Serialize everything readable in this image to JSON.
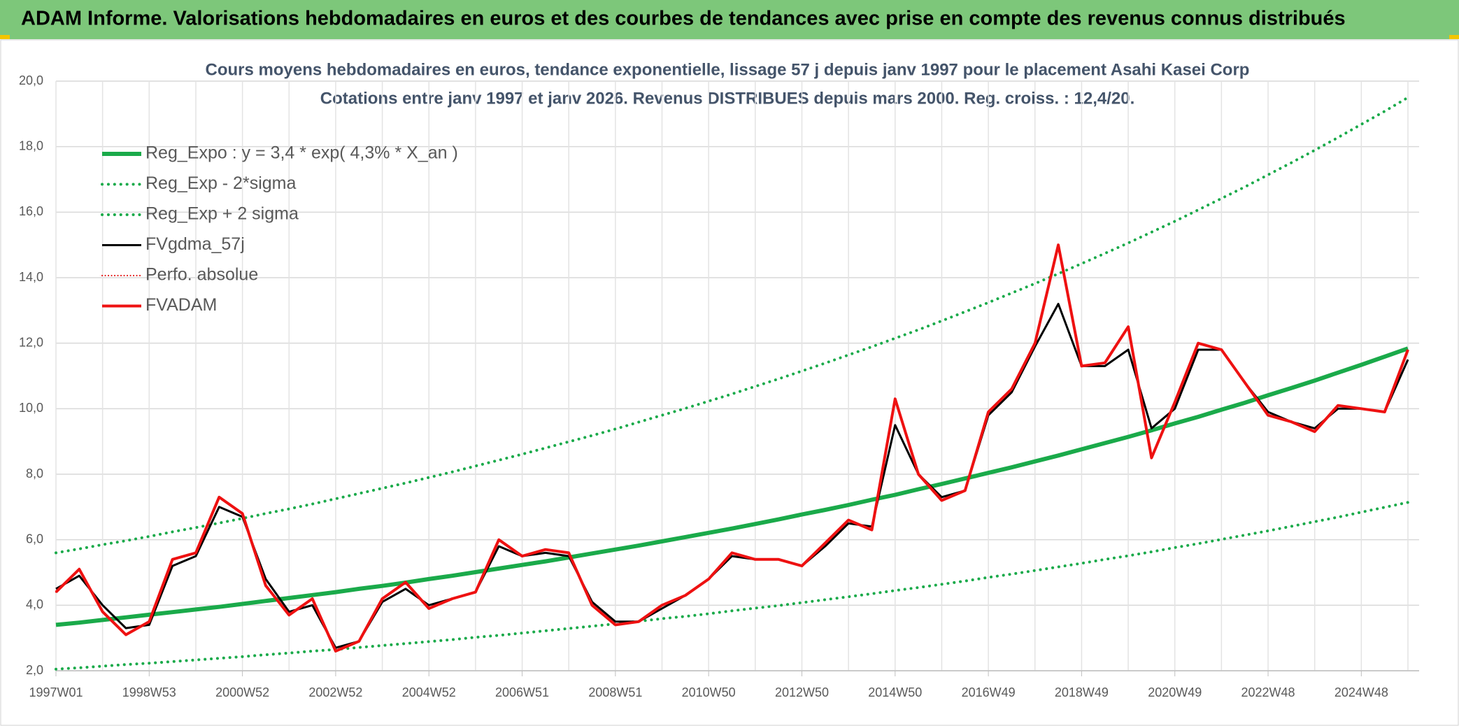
{
  "header": {
    "title": "ADAM Informe. Valorisations hebdomadaires en euros et des courbes de tendances avec prise en compte des revenus connus distribués"
  },
  "chart_data": {
    "type": "line",
    "title": "Cours moyens hebdomadaires en euros, tendance exponentielle, lissage 57 j depuis janv 1997 pour le placement Asahi Kasei Corp",
    "subtitle": "Cotations entre janv 1997 et janv 2026. Revenus DISTRIBUES depuis mars 2000. Reg. croiss. : 12,4/20.",
    "categories": [
      "1997W01",
      null,
      null,
      null,
      "1998W53",
      null,
      null,
      null,
      "2000W52",
      null,
      null,
      null,
      "2002W52",
      null,
      null,
      null,
      "2004W52",
      null,
      null,
      null,
      "2006W51",
      null,
      null,
      null,
      "2008W51",
      null,
      null,
      null,
      "2010W50",
      null,
      null,
      null,
      "2012W50",
      null,
      null,
      null,
      "2014W50",
      null,
      null,
      null,
      "2016W49",
      null,
      null,
      null,
      "2018W49",
      null,
      null,
      null,
      "2020W49",
      null,
      null,
      null,
      "2022W48",
      null,
      null,
      null,
      "2024W48",
      null,
      null
    ],
    "ylim": [
      2,
      20
    ],
    "yticks": [
      {
        "value": 2,
        "label": "2,0"
      },
      {
        "value": 4,
        "label": "4,0"
      },
      {
        "value": 6,
        "label": "6,0"
      },
      {
        "value": 8,
        "label": "8,0"
      },
      {
        "value": 10,
        "label": "10,0"
      },
      {
        "value": 12,
        "label": "12,0"
      },
      {
        "value": 14,
        "label": "14,0"
      },
      {
        "value": 16,
        "label": "16,0"
      },
      {
        "value": 18,
        "label": "18,0"
      },
      {
        "value": 20,
        "label": "20,0"
      }
    ],
    "grid": true,
    "legend": "upper left",
    "series": [
      {
        "name": "Reg_Expo : y = 3,4 * exp( 4,3% *  X_an )",
        "color": "#1aaa4a",
        "width": 6,
        "dotted": false,
        "values": [
          3.4,
          3.47,
          3.55,
          3.63,
          3.71,
          3.79,
          3.87,
          3.95,
          4.04,
          4.13,
          4.22,
          4.31,
          4.4,
          4.5,
          4.59,
          4.69,
          4.8,
          4.9,
          5.01,
          5.12,
          5.23,
          5.34,
          5.46,
          5.58,
          5.7,
          5.82,
          5.95,
          6.08,
          6.21,
          6.34,
          6.48,
          6.62,
          6.77,
          6.91,
          7.06,
          7.22,
          7.37,
          7.54,
          7.7,
          7.87,
          8.04,
          8.21,
          8.39,
          8.57,
          8.76,
          8.95,
          9.14,
          9.34,
          9.55,
          9.75,
          9.97,
          10.18,
          10.41,
          10.63,
          10.86,
          11.1,
          11.34,
          11.59,
          11.84
        ]
      },
      {
        "name": "Reg_Exp - 2*sigma",
        "color": "#1aaa4a",
        "width": 4,
        "dotted": true,
        "values": [
          2.05,
          2.09,
          2.14,
          2.19,
          2.23,
          2.28,
          2.33,
          2.38,
          2.43,
          2.49,
          2.54,
          2.6,
          2.65,
          2.71,
          2.77,
          2.83,
          2.89,
          2.95,
          3.02,
          3.08,
          3.15,
          3.22,
          3.29,
          3.36,
          3.43,
          3.51,
          3.59,
          3.66,
          3.74,
          3.83,
          3.91,
          3.99,
          4.08,
          4.17,
          4.26,
          4.35,
          4.45,
          4.54,
          4.64,
          4.74,
          4.85,
          4.95,
          5.06,
          5.17,
          5.28,
          5.4,
          5.51,
          5.63,
          5.76,
          5.88,
          6.01,
          6.14,
          6.27,
          6.41,
          6.55,
          6.69,
          6.84,
          6.99,
          7.14
        ]
      },
      {
        "name": "Reg_Exp + 2 sigma",
        "color": "#1aaa4a",
        "width": 4,
        "dotted": true,
        "values": [
          5.6,
          5.72,
          5.85,
          5.97,
          6.1,
          6.24,
          6.37,
          6.51,
          6.65,
          6.8,
          6.94,
          7.09,
          7.25,
          7.41,
          7.57,
          7.73,
          7.9,
          8.07,
          8.25,
          8.43,
          8.61,
          8.8,
          8.99,
          9.18,
          9.38,
          9.59,
          9.8,
          10.01,
          10.23,
          10.45,
          10.68,
          10.91,
          11.15,
          11.39,
          11.64,
          11.89,
          12.15,
          12.41,
          12.68,
          12.96,
          13.24,
          13.53,
          13.82,
          14.12,
          14.43,
          14.74,
          15.06,
          15.39,
          15.72,
          16.07,
          16.42,
          16.77,
          17.14,
          17.51,
          17.89,
          18.28,
          18.68,
          19.08,
          19.5
        ]
      },
      {
        "name": "FVgdma_57j",
        "color": "#000000",
        "width": 3,
        "dotted": false,
        "values": [
          4.5,
          4.9,
          4.0,
          3.3,
          3.4,
          5.2,
          5.5,
          7.0,
          6.7,
          4.8,
          3.8,
          4.0,
          2.7,
          2.9,
          4.1,
          4.5,
          4.0,
          4.2,
          4.4,
          5.8,
          5.5,
          5.6,
          5.5,
          4.1,
          3.5,
          3.5,
          3.9,
          4.3,
          4.8,
          5.5,
          5.4,
          5.4,
          5.2,
          5.8,
          6.5,
          6.4,
          9.5,
          8.0,
          7.3,
          7.5,
          9.8,
          10.5,
          11.9,
          13.2,
          11.3,
          11.3,
          11.8,
          9.4,
          10.0,
          11.8,
          11.8,
          10.8,
          9.9,
          9.6,
          9.4,
          10.0,
          10.0,
          9.9,
          11.5
        ]
      },
      {
        "name": "Perfo. absolue",
        "color": "#e00000",
        "width": 2,
        "dotted": true,
        "values": [
          4.4,
          5.1,
          3.8,
          3.1,
          3.5,
          5.4,
          5.6,
          7.3,
          6.8,
          4.6,
          3.7,
          4.2,
          2.6,
          2.9,
          4.2,
          4.7,
          3.9,
          4.2,
          4.4,
          6.0,
          5.5,
          5.7,
          5.6,
          4.0,
          3.4,
          3.5,
          4.0,
          4.3,
          4.8,
          5.6,
          5.4,
          5.4,
          5.2,
          5.9,
          6.6,
          6.3,
          10.3,
          8.0,
          7.2,
          7.5,
          9.9,
          10.6,
          12.0,
          15.0,
          11.3,
          11.4,
          12.5,
          8.5,
          10.2,
          12.0,
          11.8,
          10.8,
          9.8,
          9.6,
          9.3,
          10.1,
          10.0,
          9.9,
          11.8
        ]
      },
      {
        "name": "FVADAM",
        "color": "#ee1111",
        "width": 4,
        "dotted": false,
        "values": [
          4.4,
          5.1,
          3.8,
          3.1,
          3.5,
          5.4,
          5.6,
          7.3,
          6.8,
          4.6,
          3.7,
          4.2,
          2.6,
          2.9,
          4.2,
          4.7,
          3.9,
          4.2,
          4.4,
          6.0,
          5.5,
          5.7,
          5.6,
          4.0,
          3.4,
          3.5,
          4.0,
          4.3,
          4.8,
          5.6,
          5.4,
          5.4,
          5.2,
          5.9,
          6.6,
          6.3,
          10.3,
          8.0,
          7.2,
          7.5,
          9.9,
          10.6,
          12.0,
          15.0,
          11.3,
          11.4,
          12.5,
          8.5,
          10.2,
          12.0,
          11.8,
          10.8,
          9.8,
          9.6,
          9.3,
          10.1,
          10.0,
          9.9,
          11.8
        ]
      }
    ]
  }
}
